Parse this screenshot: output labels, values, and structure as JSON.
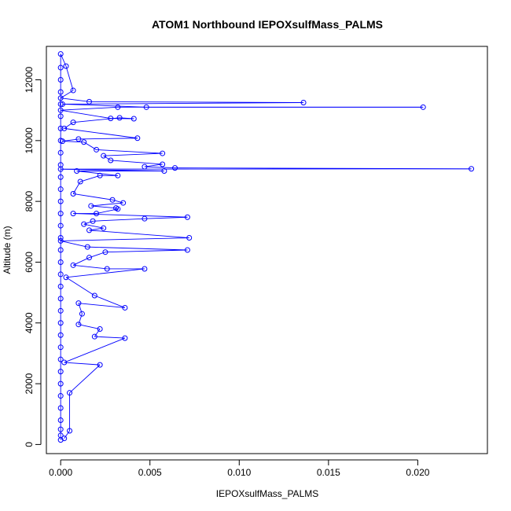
{
  "chart_data": {
    "type": "scatter",
    "title": "ATOM1 Northbound IEPOXsulfMass_PALMS",
    "xlabel": "IEPOXsulfMass_PALMS",
    "ylabel": "Altitude (m)",
    "xlim": [
      -0.0008,
      0.0239
    ],
    "ylim": [
      -300,
      13100
    ],
    "x_ticks": [
      0.0,
      0.005,
      0.01,
      0.015,
      0.02
    ],
    "x_tick_labels": [
      "0.000",
      "0.005",
      "0.010",
      "0.015",
      "0.020"
    ],
    "y_ticks": [
      0,
      2000,
      4000,
      6000,
      8000,
      10000,
      12000
    ],
    "y_tick_labels": [
      "0",
      "2000",
      "4000",
      "6000",
      "8000",
      "10000",
      "12000"
    ],
    "grid": false,
    "legend": "none",
    "series_color": "#0000ff",
    "series": [
      {
        "marker": "open-circle",
        "line": true,
        "points": [
          [
            0.0,
            150
          ],
          [
            0.0,
            300
          ],
          [
            0.0,
            500
          ],
          [
            0.0,
            800
          ],
          [
            0.0,
            1200
          ],
          [
            0.0,
            1600
          ],
          [
            0.0,
            2000
          ],
          [
            0.0,
            2400
          ],
          [
            0.0,
            2800
          ],
          [
            0.0,
            3200
          ],
          [
            0.0,
            3600
          ],
          [
            0.0,
            4000
          ],
          [
            0.0,
            4400
          ],
          [
            0.0,
            4800
          ],
          [
            0.0,
            5200
          ],
          [
            0.0,
            5600
          ],
          [
            0.0,
            6000
          ],
          [
            0.0,
            6400
          ],
          [
            0.0,
            6800
          ],
          [
            0.0,
            7200
          ],
          [
            0.0,
            7600
          ],
          [
            0.0,
            8000
          ],
          [
            0.0,
            8400
          ],
          [
            0.0,
            8800
          ],
          [
            0.0,
            9200
          ],
          [
            0.0,
            9600
          ],
          [
            0.0,
            10000
          ],
          [
            0.0,
            10400
          ],
          [
            0.0,
            10800
          ],
          [
            0.0,
            11200
          ],
          [
            0.0,
            11600
          ],
          [
            0.0,
            12000
          ],
          [
            0.0,
            12400
          ],
          [
            0.0,
            12850
          ],
          [
            0.0003,
            12450
          ],
          [
            0.0007,
            11650
          ],
          [
            0.0,
            11400
          ],
          [
            0.0016,
            11280
          ],
          [
            0.0136,
            11250
          ],
          [
            0.0001,
            11200
          ],
          [
            0.0048,
            11100
          ],
          [
            0.0203,
            11100
          ],
          [
            0.0032,
            11100
          ],
          [
            0.0,
            11000
          ],
          [
            0.0028,
            10730
          ],
          [
            0.0041,
            10720
          ],
          [
            0.0033,
            10750
          ],
          [
            0.0007,
            10600
          ],
          [
            0.0002,
            10400
          ],
          [
            0.0043,
            10080
          ],
          [
            0.001,
            10050
          ],
          [
            0.0001,
            9980
          ],
          [
            0.0013,
            9950
          ],
          [
            0.002,
            9700
          ],
          [
            0.0057,
            9580
          ],
          [
            0.0024,
            9500
          ],
          [
            0.0028,
            9350
          ],
          [
            0.0057,
            9220
          ],
          [
            0.0047,
            9140
          ],
          [
            0.0064,
            9100
          ],
          [
            0.023,
            9070
          ],
          [
            0.0,
            9060
          ],
          [
            0.0058,
            9000
          ],
          [
            0.0009,
            9000
          ],
          [
            0.0032,
            8850
          ],
          [
            0.0022,
            8850
          ],
          [
            0.0011,
            8650
          ],
          [
            0.0007,
            8250
          ],
          [
            0.0029,
            8050
          ],
          [
            0.0035,
            7950
          ],
          [
            0.0017,
            7850
          ],
          [
            0.0031,
            7780
          ],
          [
            0.0032,
            7750
          ],
          [
            0.002,
            7600
          ],
          [
            0.0007,
            7600
          ],
          [
            0.0071,
            7480
          ],
          [
            0.0047,
            7430
          ],
          [
            0.0018,
            7350
          ],
          [
            0.0013,
            7250
          ],
          [
            0.0024,
            7120
          ],
          [
            0.0016,
            7050
          ],
          [
            0.0072,
            6800
          ],
          [
            0.0,
            6700
          ],
          [
            0.0015,
            6500
          ],
          [
            0.0071,
            6400
          ],
          [
            0.0025,
            6330
          ],
          [
            0.0016,
            6150
          ],
          [
            0.0007,
            5900
          ],
          [
            0.0026,
            5780
          ],
          [
            0.0047,
            5780
          ],
          [
            0.0003,
            5500
          ],
          [
            0.0019,
            4900
          ],
          [
            0.0036,
            4500
          ],
          [
            0.001,
            4650
          ],
          [
            0.0012,
            4300
          ],
          [
            0.001,
            3950
          ],
          [
            0.0022,
            3800
          ],
          [
            0.0019,
            3550
          ],
          [
            0.0036,
            3500
          ],
          [
            0.0002,
            2700
          ],
          [
            0.0022,
            2620
          ],
          [
            0.0005,
            1700
          ],
          [
            0.0005,
            450
          ],
          [
            0.0002,
            200
          ]
        ]
      }
    ]
  }
}
